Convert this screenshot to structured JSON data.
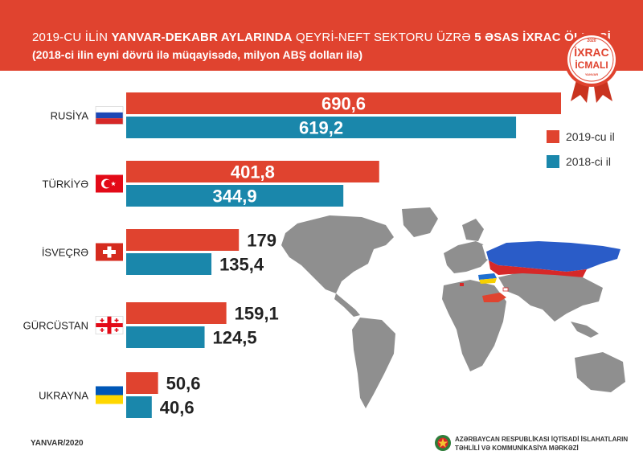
{
  "header": {
    "title_part1": "2019-CU İLİN ",
    "title_part2": "YANVAR-DEKABR AYLARINDA",
    "title_part3": "  QEYRİ-NEFT SEKTORU ÜZRƏ ",
    "title_part4": "5 ƏSAS İXRAC ÖLKƏSİ",
    "subtitle": "(2018-ci ilin eyni dövrü ilə müqayisədə, milyon ABŞ dolları ilə)"
  },
  "badge": {
    "year": "2020",
    "line1": "İXRAC",
    "line2": "İCMALI",
    "line3": "YANVAR"
  },
  "colors": {
    "red": "#e0432f",
    "blue": "#1a87ab",
    "map_gray": "#8f8f8f",
    "text_dark": "#222222"
  },
  "chart_data": {
    "type": "bar",
    "orientation": "horizontal",
    "categories": [
      "RUSİYA",
      "TÜRKİYƏ",
      "İSVEÇRƏ",
      "GÜRCÜSTAN",
      "UKRAYNA"
    ],
    "flag_icons": [
      "russia-flag-icon",
      "turkey-flag-icon",
      "switzerland-flag-icon",
      "georgia-flag-icon",
      "ukraine-flag-icon"
    ],
    "series": [
      {
        "name": "2019-cu il",
        "color": "#e0432f",
        "values": [
          690.6,
          401.8,
          179,
          159.1,
          50.6
        ],
        "labels": [
          "690,6",
          "401,8",
          "179",
          "159,1",
          "50,6"
        ]
      },
      {
        "name": "2018-ci il",
        "color": "#1a87ab",
        "values": [
          619.2,
          344.9,
          135.4,
          124.5,
          40.6
        ],
        "labels": [
          "619,2",
          "344,9",
          "135,4",
          "124,5",
          "40,6"
        ]
      }
    ],
    "xlim": [
      0,
      690.6
    ],
    "grid": false,
    "legend_position": "right"
  },
  "footer": {
    "date": "YANVAR/2020",
    "org_line1": "AZƏRBAYCAN RESPUBLİKASI İQTİSADİ İSLAHATLARIN",
    "org_line2": "TƏHLİLİ VƏ KOMMUNİKASİYA MƏRKƏZİ"
  }
}
